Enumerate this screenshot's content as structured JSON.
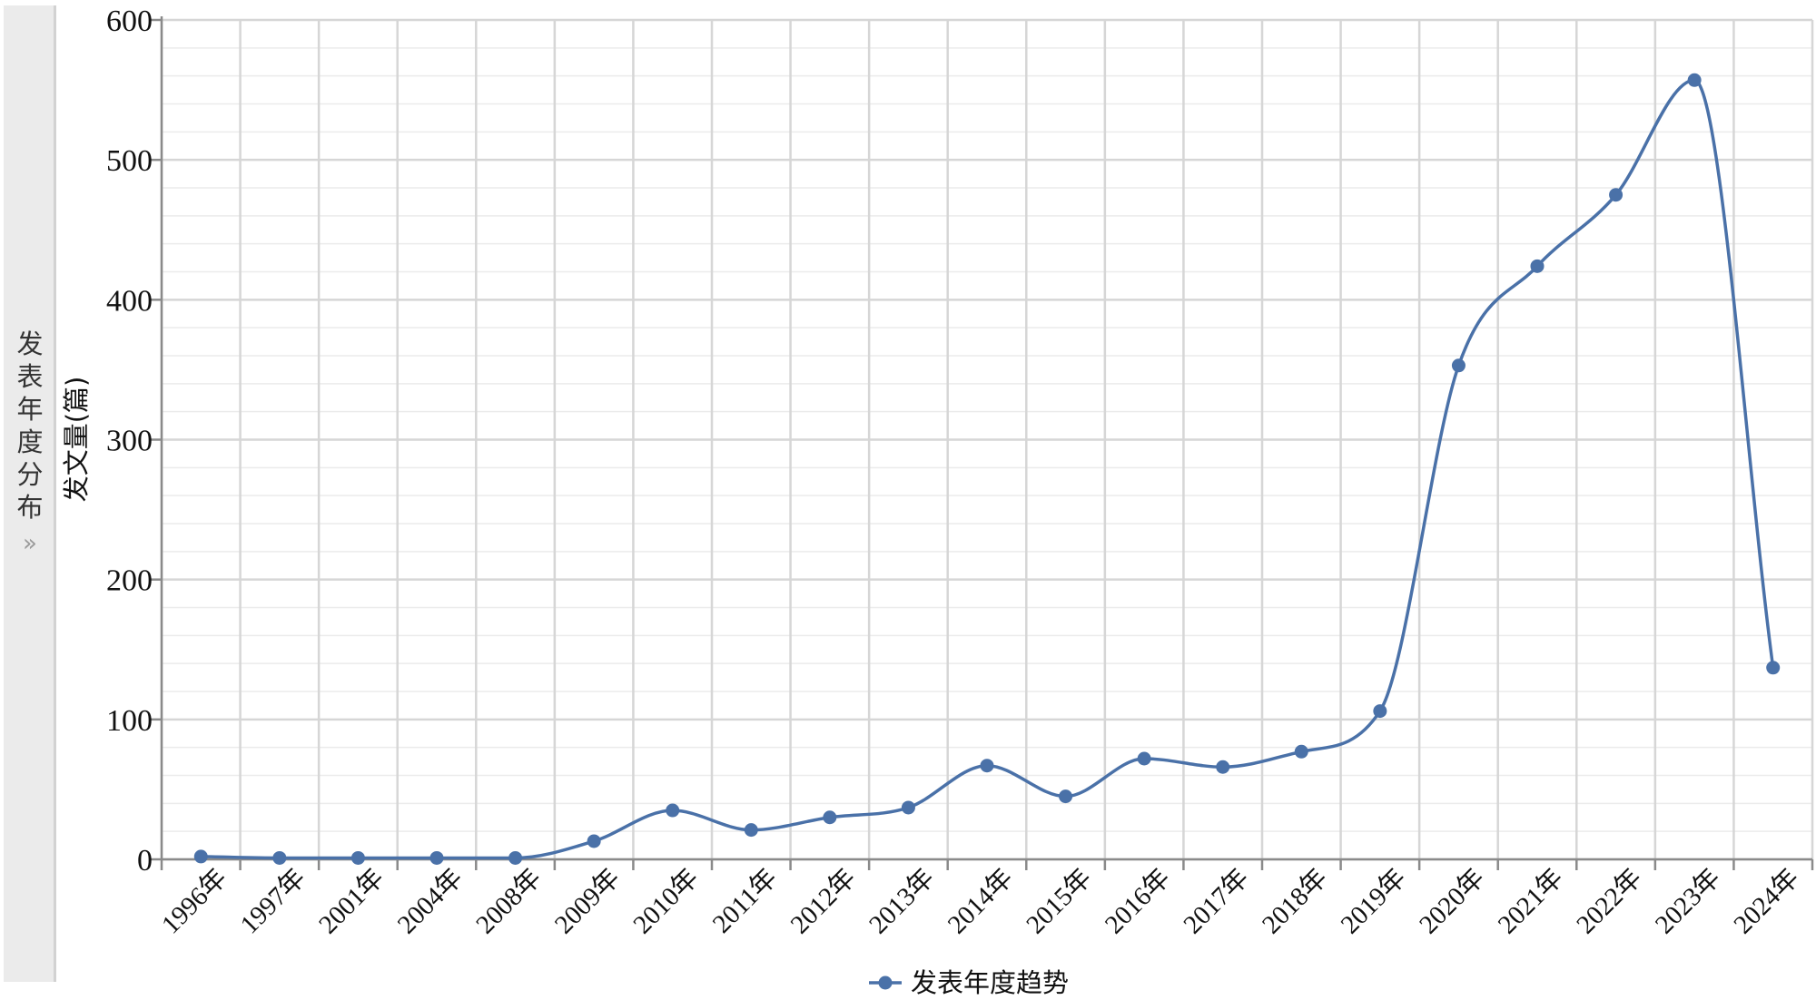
{
  "side_panel": {
    "title_chars": [
      "发",
      "表",
      "年",
      "度",
      "分",
      "布"
    ],
    "arrow_glyph": "»"
  },
  "chart_data": {
    "type": "line",
    "title": "",
    "xlabel": "",
    "ylabel": "发文量(篇)",
    "ylim": [
      0,
      600
    ],
    "yticks": [
      0,
      100,
      200,
      300,
      400,
      500,
      600
    ],
    "grid": true,
    "legend_position": "bottom-center",
    "categories": [
      "1996年",
      "1997年",
      "2001年",
      "2004年",
      "2008年",
      "2009年",
      "2010年",
      "2011年",
      "2012年",
      "2013年",
      "2014年",
      "2015年",
      "2016年",
      "2017年",
      "2018年",
      "2019年",
      "2020年",
      "2021年",
      "2022年",
      "2023年",
      "2024年"
    ],
    "series": [
      {
        "name": "发表年度趋势",
        "color": "#4a71a8",
        "values": [
          2,
          1,
          1,
          1,
          1,
          13,
          35,
          21,
          30,
          37,
          67,
          45,
          72,
          66,
          77,
          106,
          353,
          424,
          475,
          557,
          137
        ]
      }
    ]
  },
  "colors": {
    "grid": "#d6d6d6",
    "axis": "#8a8a8a",
    "text": "#111111",
    "series": "#4a71a8"
  }
}
